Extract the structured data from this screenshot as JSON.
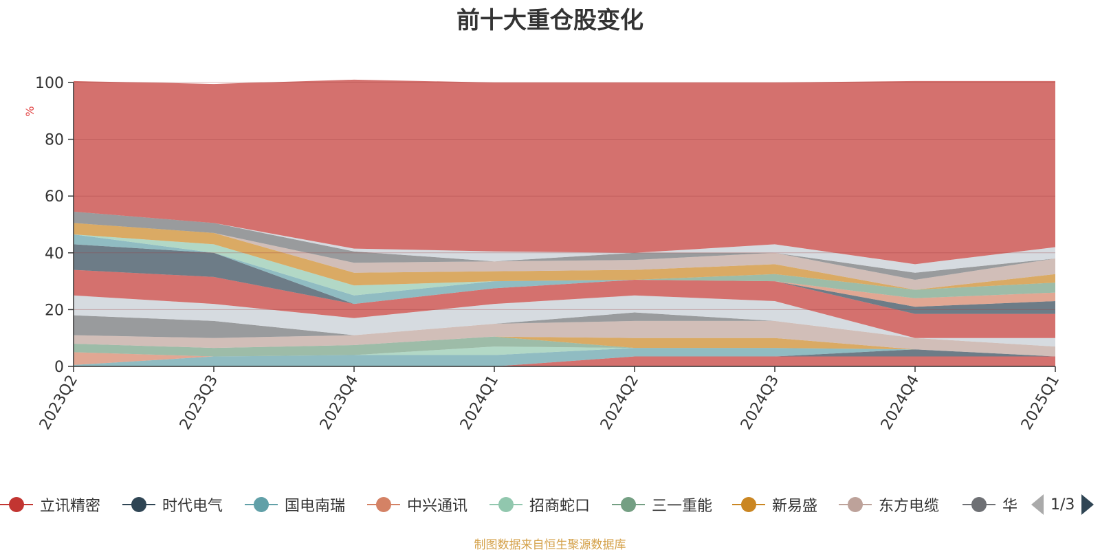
{
  "chart_data": {
    "type": "area",
    "stacked": true,
    "title": "前十大重仓股变化",
    "ylabel": "%",
    "ylim": [
      0,
      100
    ],
    "yticks": [
      0,
      20,
      40,
      60,
      80,
      100
    ],
    "grid": true,
    "categories": [
      "2023Q2",
      "2023Q3",
      "2023Q4",
      "2024Q1",
      "2024Q2",
      "2024Q3",
      "2024Q4",
      "2025Q1"
    ],
    "series": [
      {
        "name": "立讯精密",
        "color": "#c23531",
        "values": [
          0,
          0,
          0,
          0,
          3.5,
          3.5,
          3.5,
          3.5
        ]
      },
      {
        "name": "时代电气",
        "color": "#2f4554",
        "values": [
          0,
          0,
          0,
          0,
          0,
          0,
          2.5,
          0
        ]
      },
      {
        "name": "国电南瑞",
        "color": "#61a0a8",
        "values": [
          0.5,
          3.5,
          4,
          4,
          3,
          3,
          0,
          0
        ]
      },
      {
        "name": "中兴通讯",
        "color": "#d48265",
        "values": [
          4.5,
          0,
          0,
          0,
          0,
          0,
          0,
          0
        ]
      },
      {
        "name": "招商蛇口",
        "color": "#91c7ae",
        "values": [
          0,
          0,
          0,
          3,
          0,
          0,
          0,
          0
        ]
      },
      {
        "name": "三一重能",
        "color": "#749f83",
        "values": [
          3,
          3,
          3.5,
          3.5,
          0,
          0,
          0,
          0
        ]
      },
      {
        "name": "新易盛",
        "color": "#ca8622",
        "values": [
          0,
          0,
          0,
          0,
          3.5,
          3.5,
          0,
          0
        ]
      },
      {
        "name": "东方电缆",
        "color": "#bda29a",
        "values": [
          3,
          3.5,
          3.5,
          4.5,
          6,
          6,
          4,
          3.5
        ]
      },
      {
        "name": "华",
        "color": "#6e7074",
        "values": [
          7,
          6,
          0,
          0,
          3,
          0,
          0,
          0
        ]
      },
      {
        "name": "",
        "color": "#c4ccd3",
        "values": [
          7,
          6,
          6,
          7,
          6,
          7,
          0,
          3
        ]
      },
      {
        "name": "",
        "color": "#c23531",
        "values": [
          9,
          9.5,
          5,
          5.5,
          5.5,
          7,
          8.5,
          8.5
        ]
      },
      {
        "name": "",
        "color": "#2f4554",
        "values": [
          9,
          8.5,
          0,
          0,
          0,
          0,
          2.5,
          4.5
        ]
      },
      {
        "name": "",
        "color": "#61a0a8",
        "values": [
          3.5,
          0,
          3,
          2.5,
          0,
          0,
          0,
          0
        ]
      },
      {
        "name": "",
        "color": "#d48265",
        "values": [
          0,
          0,
          0,
          0,
          0,
          0,
          3,
          3
        ]
      },
      {
        "name": "",
        "color": "#91c7ae",
        "values": [
          0,
          3,
          3.5,
          0,
          0,
          0,
          0,
          0
        ]
      },
      {
        "name": "",
        "color": "#749f83",
        "values": [
          0,
          0,
          0,
          0,
          0,
          2.5,
          3,
          3.5
        ]
      },
      {
        "name": "",
        "color": "#ca8622",
        "values": [
          4,
          4,
          4.5,
          3.5,
          3.5,
          3.5,
          0,
          3
        ]
      },
      {
        "name": "",
        "color": "#bda29a",
        "values": [
          0,
          0,
          3.5,
          3.5,
          3.5,
          4,
          3.5,
          5.5
        ]
      },
      {
        "name": "",
        "color": "#6e7074",
        "values": [
          4,
          3.5,
          4,
          0,
          2.5,
          0,
          2.5,
          0
        ]
      },
      {
        "name": "",
        "color": "#c4ccd3",
        "values": [
          0,
          0,
          1,
          3.5,
          0,
          3,
          3,
          4
        ]
      },
      {
        "name": "",
        "color": "#c23531",
        "values": [
          46,
          49,
          59.5,
          59.5,
          60,
          57,
          64.5,
          58.5
        ]
      }
    ]
  },
  "legend_items": [
    {
      "label": "立讯精密",
      "color": "#c23531"
    },
    {
      "label": "时代电气",
      "color": "#2f4554"
    },
    {
      "label": "国电南瑞",
      "color": "#61a0a8"
    },
    {
      "label": "中兴通讯",
      "color": "#d48265"
    },
    {
      "label": "招商蛇口",
      "color": "#91c7ae"
    },
    {
      "label": "三一重能",
      "color": "#749f83"
    },
    {
      "label": "新易盛",
      "color": "#ca8622"
    },
    {
      "label": "东方电缆",
      "color": "#bda29a"
    },
    {
      "label": "华",
      "color": "#6e7074"
    }
  ],
  "legend_pager": {
    "text": "1/3"
  },
  "source_note": "制图数据来自恒生聚源数据库"
}
